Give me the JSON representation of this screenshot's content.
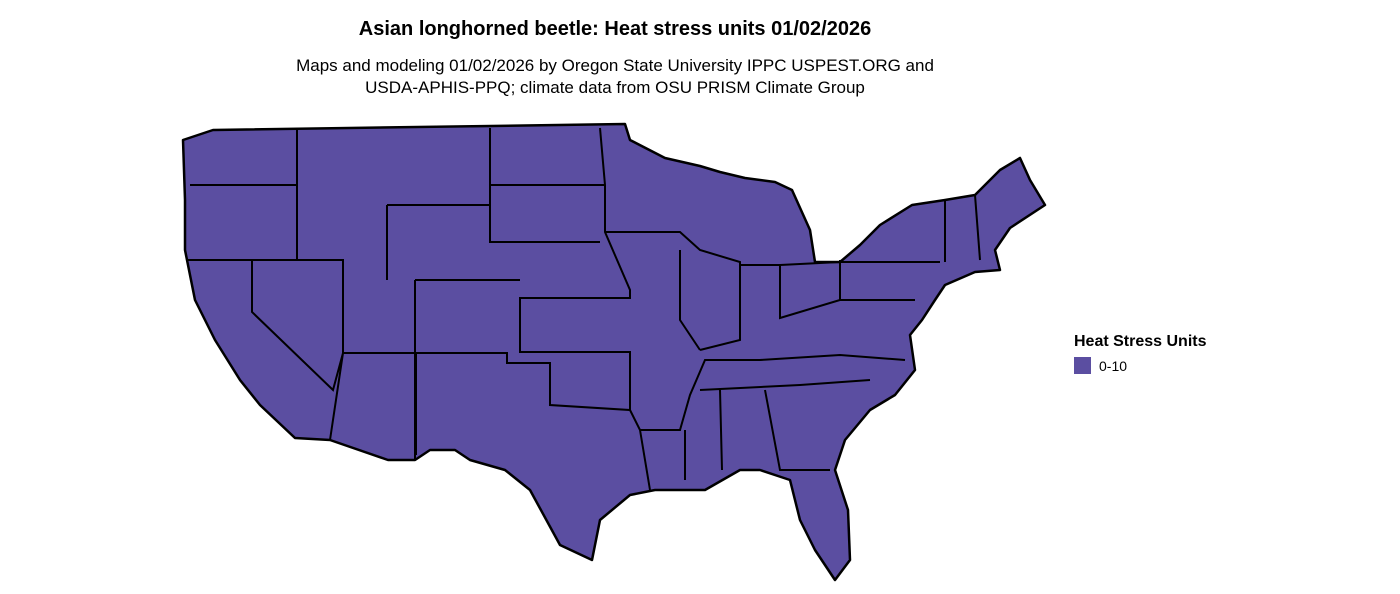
{
  "title": "Asian longhorned beetle: Heat stress units 01/02/2026",
  "subtitle_line1": "Maps and modeling 01/02/2026 by Oregon State University IPPC USPEST.ORG and",
  "subtitle_line2": "USDA-APHIS-PPQ; climate data from OSU PRISM Climate Group",
  "map": {
    "region": "Contiguous United States",
    "fill_color": "#5b4ea1",
    "border_color": "#000000"
  },
  "legend": {
    "title": "Heat Stress Units",
    "items": [
      {
        "label": "0-10",
        "color": "#5b4ea1"
      }
    ]
  }
}
